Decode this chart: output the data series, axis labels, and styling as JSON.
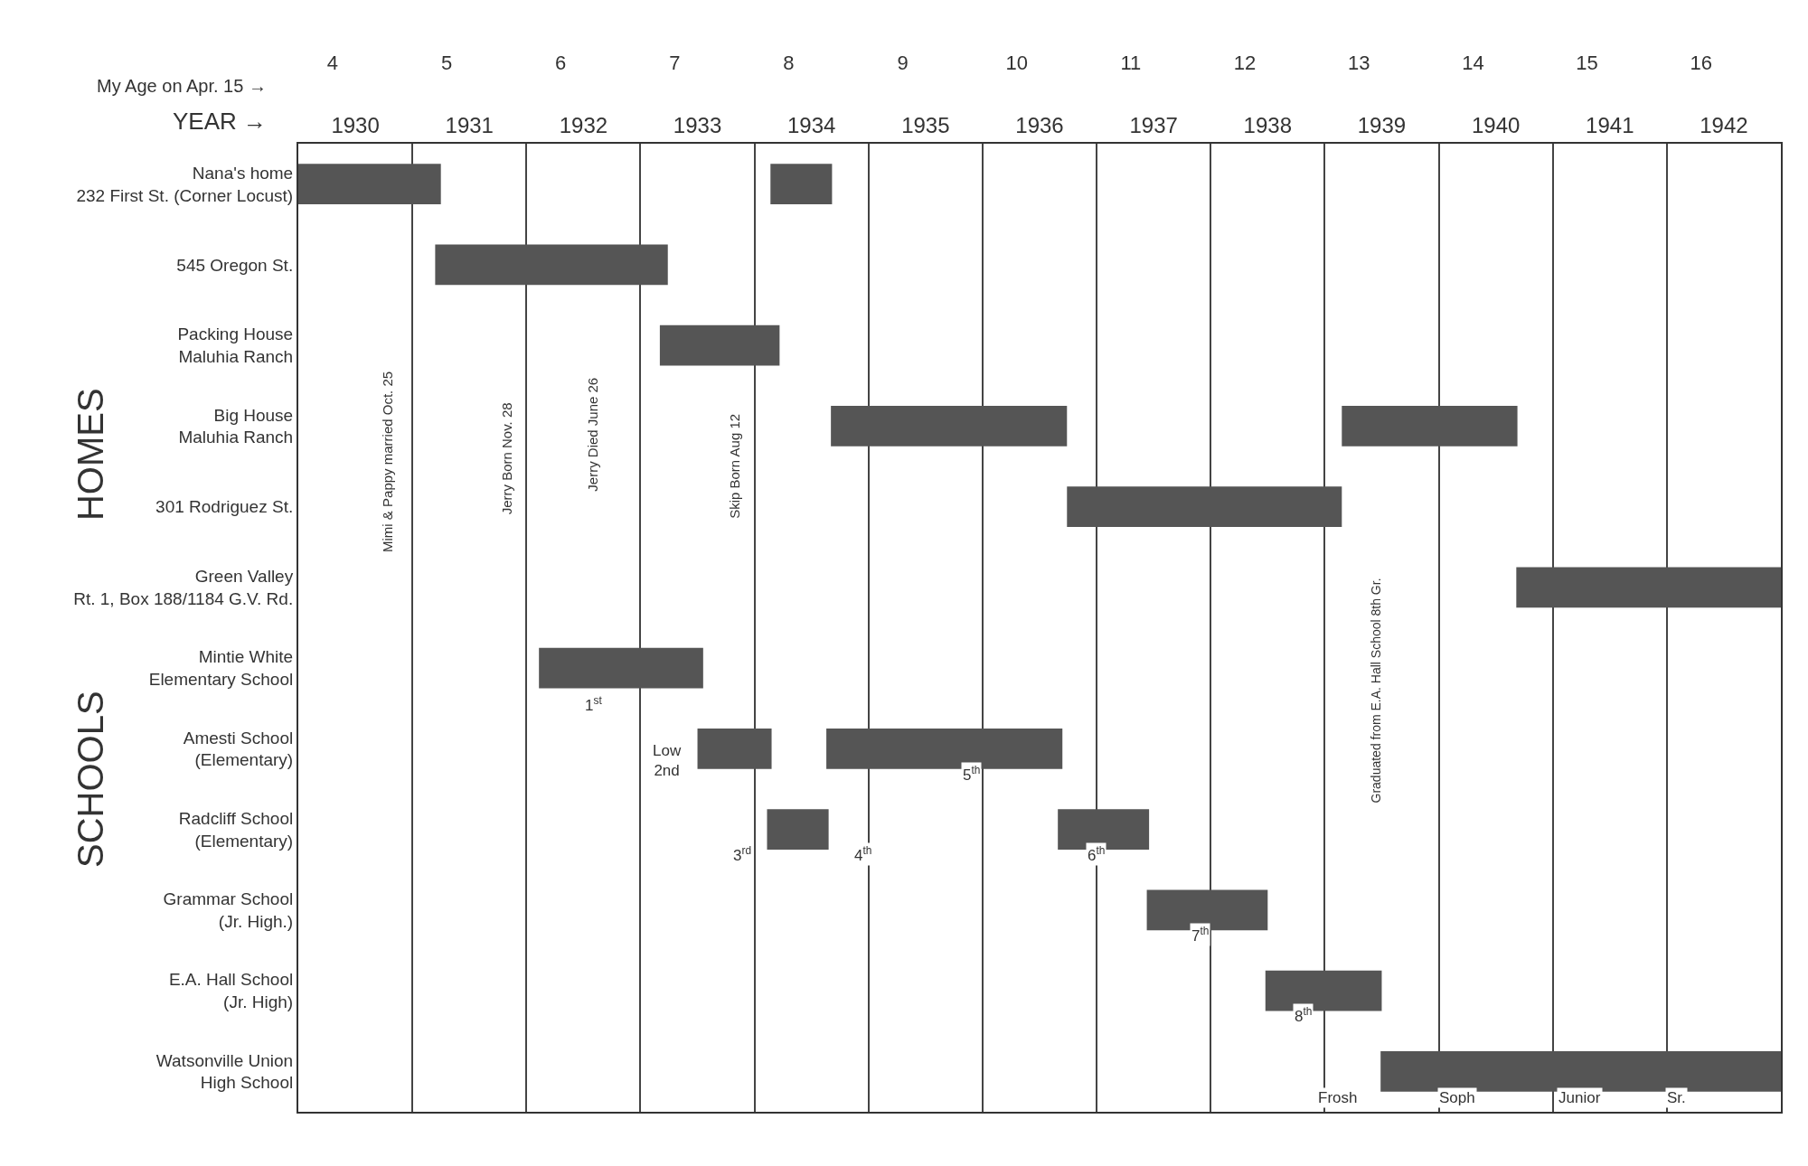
{
  "chart_data": {
    "type": "bar",
    "orientation": "horizontal",
    "xlabel": "YEAR →",
    "x2label": "My Age on Apr. 15 →",
    "categories": [
      "Nana's home\n232 First St. (Corner Locust)",
      "545 Oregon St.",
      "Packing House\nMaluhia Ranch",
      "Big House\nMaluhia Ranch",
      "301 Rodriguez St.",
      "Green Valley\nRt. 1, Box 188/1184 G.V. Rd.",
      "Mintie White\nElementary School",
      "Amesti School\n(Elementary)",
      "Radcliff School\n(Elementary)",
      "Grammar School\n(Jr. High.)",
      "E.A. Hall School\n(Jr. High)",
      "Watsonville Union\nHigh School"
    ],
    "series": [
      {
        "color": "#555555",
        "base": [
          1930,
          1931.2,
          1933.17,
          1934.67,
          1936.74,
          1940.68,
          1932.11,
          1933.5,
          1934.11,
          1937.44,
          1938.48,
          1939.49
        ],
        "values": [
          1.25,
          2.04,
          1.05,
          2.07,
          2.41,
          2.32,
          1.44,
          0.65,
          0.54,
          1.06,
          1.02,
          3.51
        ]
      },
      {
        "color": "#555555",
        "base": [
          1934.14,
          null,
          null,
          1939.15,
          null,
          null,
          null,
          1934.63,
          1936.66,
          null,
          null,
          null
        ],
        "values": [
          0.54,
          null,
          null,
          1.54,
          null,
          null,
          null,
          2.07,
          0.8,
          null,
          null,
          null
        ]
      }
    ],
    "xlim": [
      1930,
      1943
    ],
    "xticks": [
      {
        "value": 1930,
        "label": null
      },
      {
        "value": 1931,
        "label": null
      },
      {
        "value": 1932,
        "label": null
      },
      {
        "value": 1933,
        "label": null
      },
      {
        "value": 1934,
        "label": null
      },
      {
        "value": 1935,
        "label": null
      },
      {
        "value": 1936,
        "label": null
      },
      {
        "value": 1937,
        "label": null
      },
      {
        "value": 1938,
        "label": null
      },
      {
        "value": 1939,
        "label": null
      },
      {
        "value": 1940,
        "label": null
      },
      {
        "value": 1941,
        "label": null
      },
      {
        "value": 1942,
        "label": null
      },
      {
        "value": 1943,
        "label": null
      },
      {
        "value": 1930.5,
        "label": "1930"
      },
      {
        "value": 1931.5,
        "label": "1931"
      },
      {
        "value": 1932.5,
        "label": "1932"
      },
      {
        "value": 1933.5,
        "label": "1933"
      },
      {
        "value": 1934.5,
        "label": "1934"
      },
      {
        "value": 1935.5,
        "label": "1935"
      },
      {
        "value": 1936.5,
        "label": "1936"
      },
      {
        "value": 1937.5,
        "label": "1937"
      },
      {
        "value": 1938.5,
        "label": "1938"
      },
      {
        "value": 1939.5,
        "label": "1939"
      },
      {
        "value": 1940.5,
        "label": "1940"
      },
      {
        "value": 1941.5,
        "label": "1941"
      },
      {
        "value": 1942.5,
        "label": "1942"
      }
    ],
    "x2lim": [
      3.7,
      16.7
    ],
    "x2ticks": [
      4,
      5,
      6,
      7,
      8,
      9,
      10,
      11,
      12,
      13,
      14,
      15,
      16
    ],
    "grid": "x",
    "annotations": [
      "HOMES",
      "SCHOOLS",
      "Mimi & Pappy married Oct. 25",
      "Jerry Born Nov. 28",
      "Jerry Died June 26",
      "Skip Born Aug 12",
      "Graduated from E.A. Hall School 8th Gr.",
      "1$^{st}$",
      "Low\n2nd",
      "3$^{rd}$",
      "4$^{th}$",
      "5$^{th}$",
      "6$^{th}$",
      "7$^{th}$",
      "8$^{th}$",
      "Frosh",
      "Soph",
      "Junior",
      "Sr."
    ]
  }
}
